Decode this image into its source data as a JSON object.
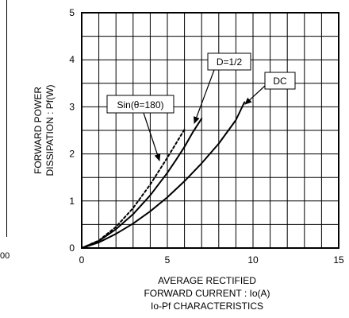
{
  "edge_fragment": {
    "text": "00"
  },
  "chart_data": {
    "type": "line",
    "ylabel_lines": [
      "FORWARD POWER",
      "DISSIPATION : Pf(W)"
    ],
    "xlabel_lines": [
      "AVERAGE RECTIFIED",
      "FORWARD CURRENT : Io(A)",
      "Io-Pf CHARACTERISTICS"
    ],
    "xlim": [
      0,
      15
    ],
    "ylim": [
      0,
      5
    ],
    "x_ticks": [
      0,
      5,
      10,
      15
    ],
    "y_ticks": [
      0,
      1,
      2,
      3,
      4,
      5
    ],
    "grid": true,
    "grid_step": {
      "x": 1,
      "y": 0.5
    },
    "series": [
      {
        "name": "DC",
        "style": "solid",
        "points": [
          [
            0,
            0
          ],
          [
            1,
            0.12
          ],
          [
            2,
            0.3
          ],
          [
            3,
            0.52
          ],
          [
            4,
            0.78
          ],
          [
            5,
            1.08
          ],
          [
            6,
            1.42
          ],
          [
            7,
            1.8
          ],
          [
            8,
            2.22
          ],
          [
            9,
            2.72
          ],
          [
            9.5,
            3.1
          ]
        ]
      },
      {
        "name": "D=1/2",
        "style": "solid",
        "points": [
          [
            0,
            0
          ],
          [
            1,
            0.15
          ],
          [
            2,
            0.4
          ],
          [
            3,
            0.72
          ],
          [
            4,
            1.12
          ],
          [
            5,
            1.6
          ],
          [
            5.5,
            1.87
          ],
          [
            6,
            2.15
          ],
          [
            6.5,
            2.47
          ],
          [
            7,
            2.75
          ]
        ]
      },
      {
        "name": "Sin(θ=180)",
        "style": "dashed",
        "points": [
          [
            0,
            0
          ],
          [
            1,
            0.16
          ],
          [
            2,
            0.45
          ],
          [
            3,
            0.85
          ],
          [
            4,
            1.35
          ],
          [
            5,
            1.92
          ],
          [
            5.5,
            2.22
          ],
          [
            6,
            2.52
          ]
        ]
      }
    ],
    "annotations": [
      {
        "label": "D=1/2"
      },
      {
        "label": "DC"
      },
      {
        "label": "Sin(θ=180)"
      }
    ]
  }
}
